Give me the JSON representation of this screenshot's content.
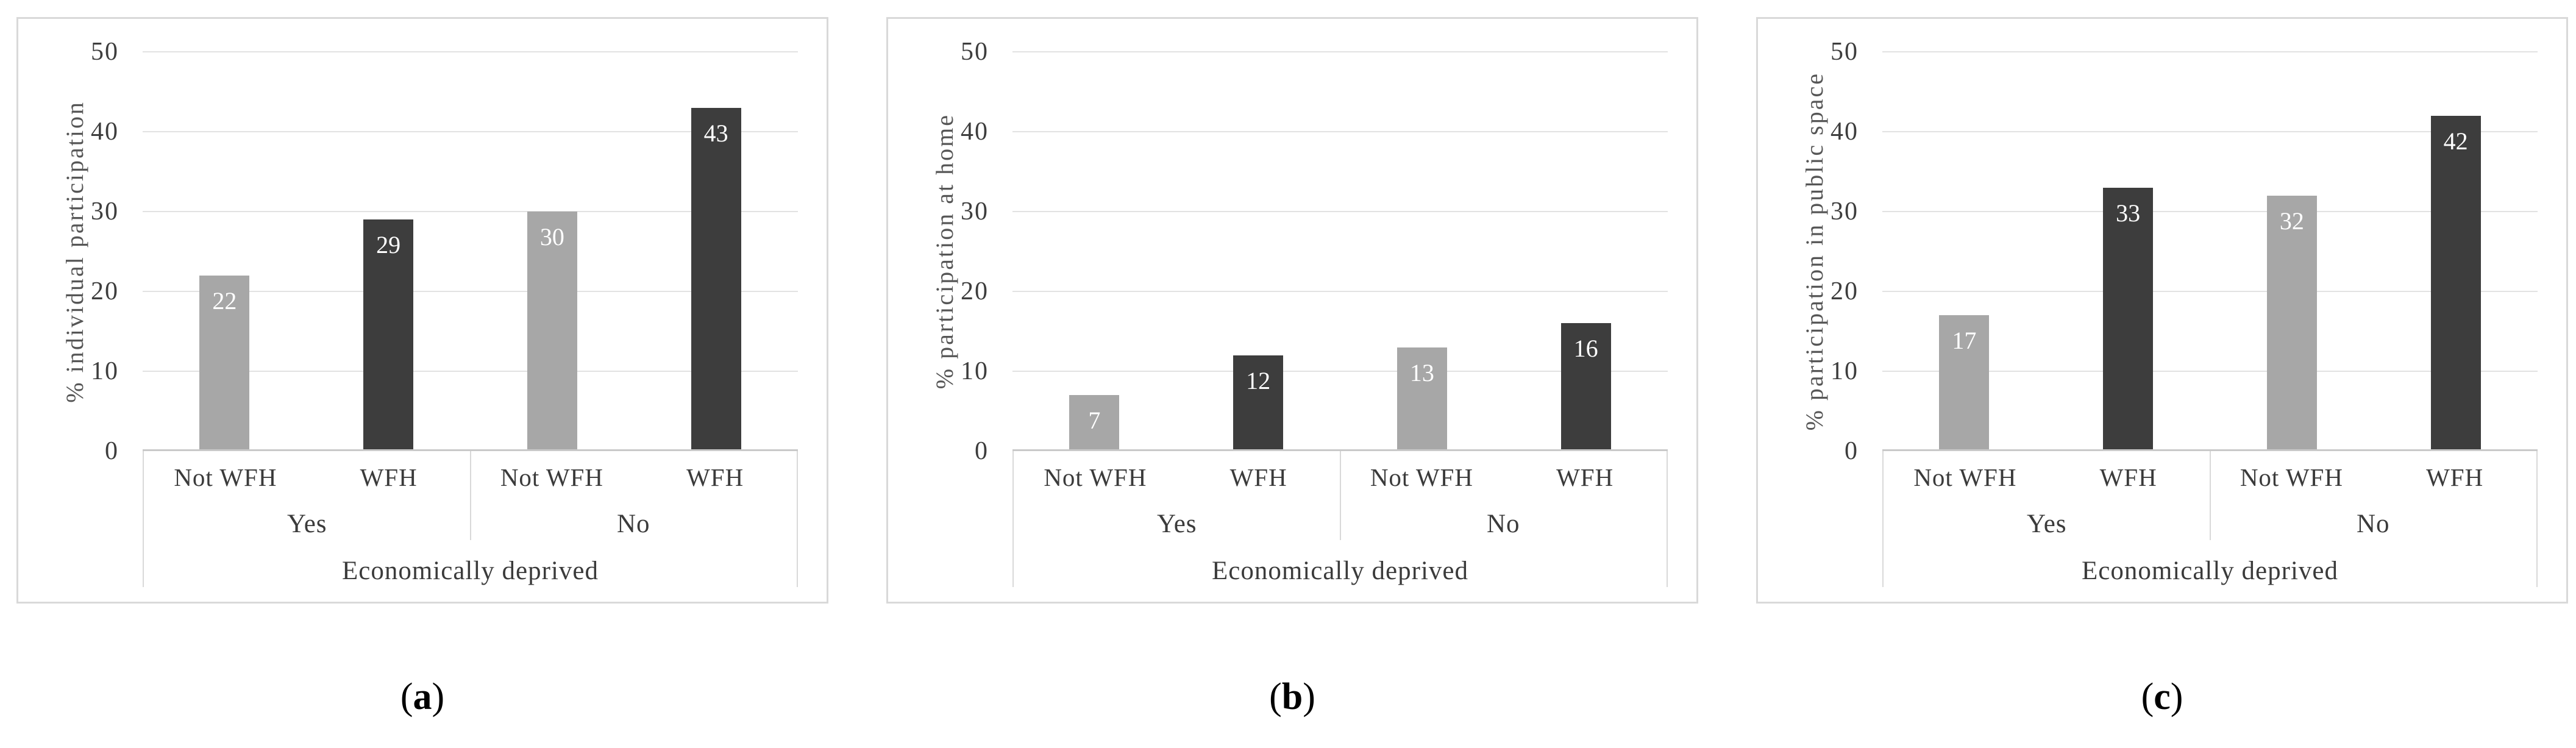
{
  "colors": {
    "bar_light": "#a7a7a7",
    "bar_dark": "#3d3d3d",
    "gridline": "#e2e2e2",
    "axis_line": "#c9c9c9",
    "panel_border": "#d9d9d9",
    "table_border": "#d9d9d9",
    "tick_text": "#3d3d3d",
    "axis_title_text": "#565656",
    "label_text": "#3b3b3b",
    "value_text": "#ffffff"
  },
  "captions": [
    {
      "prefix": "(",
      "letter": "a",
      "suffix": ")"
    },
    {
      "prefix": "(",
      "letter": "b",
      "suffix": ")"
    },
    {
      "prefix": "(",
      "letter": "c",
      "suffix": ")"
    }
  ],
  "chart_data": [
    {
      "type": "bar",
      "title": "",
      "ylabel": "% individual participation",
      "xlabel": "Economically deprived",
      "ylim": [
        0,
        50
      ],
      "yticks": [
        0,
        10,
        20,
        30,
        40,
        50
      ],
      "grid": true,
      "legend_position": "none",
      "group_labels": [
        "Yes",
        "No"
      ],
      "categories": [
        "Not WFH",
        "WFH",
        "Not WFH",
        "WFH"
      ],
      "values": [
        22,
        29,
        30,
        43
      ],
      "bar_styles": [
        "light",
        "dark",
        "light",
        "dark"
      ],
      "caption": "(a)"
    },
    {
      "type": "bar",
      "title": "",
      "ylabel": "% participation at home",
      "xlabel": "Economically deprived",
      "ylim": [
        0,
        50
      ],
      "yticks": [
        0,
        10,
        20,
        30,
        40,
        50
      ],
      "grid": true,
      "legend_position": "none",
      "group_labels": [
        "Yes",
        "No"
      ],
      "categories": [
        "Not WFH",
        "WFH",
        "Not WFH",
        "WFH"
      ],
      "values": [
        7,
        12,
        13,
        16
      ],
      "bar_styles": [
        "light",
        "dark",
        "light",
        "dark"
      ],
      "caption": "(b)"
    },
    {
      "type": "bar",
      "title": "",
      "ylabel": "% participation in public space",
      "xlabel": "Economically deprived",
      "ylim": [
        0,
        50
      ],
      "yticks": [
        0,
        10,
        20,
        30,
        40,
        50
      ],
      "grid": true,
      "legend_position": "none",
      "group_labels": [
        "Yes",
        "No"
      ],
      "categories": [
        "Not WFH",
        "WFH",
        "Not WFH",
        "WFH"
      ],
      "values": [
        17,
        33,
        32,
        42
      ],
      "bar_styles": [
        "light",
        "dark",
        "light",
        "dark"
      ],
      "caption": "(c)"
    }
  ]
}
